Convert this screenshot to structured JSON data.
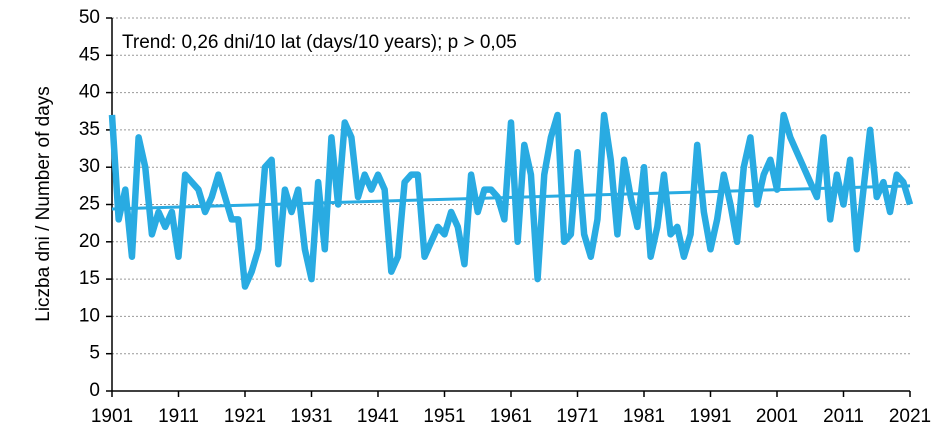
{
  "chart_data": {
    "type": "line",
    "annotation": "Trend: 0,26 dni/10 lat (days/10 years); p > 0,05",
    "y_label": "Liczba dni / Number of days",
    "x": [
      1901,
      1902,
      1903,
      1904,
      1905,
      1906,
      1907,
      1908,
      1909,
      1910,
      1911,
      1912,
      1913,
      1914,
      1915,
      1916,
      1917,
      1918,
      1919,
      1920,
      1921,
      1922,
      1923,
      1924,
      1925,
      1926,
      1927,
      1928,
      1929,
      1930,
      1931,
      1932,
      1933,
      1934,
      1935,
      1936,
      1937,
      1938,
      1939,
      1940,
      1941,
      1942,
      1943,
      1944,
      1945,
      1946,
      1947,
      1948,
      1949,
      1950,
      1951,
      1952,
      1953,
      1954,
      1955,
      1956,
      1957,
      1958,
      1959,
      1960,
      1961,
      1962,
      1963,
      1964,
      1965,
      1966,
      1967,
      1968,
      1969,
      1970,
      1971,
      1972,
      1973,
      1974,
      1975,
      1976,
      1977,
      1978,
      1979,
      1980,
      1981,
      1982,
      1983,
      1984,
      1985,
      1986,
      1987,
      1988,
      1989,
      1990,
      1991,
      1992,
      1993,
      1994,
      1995,
      1996,
      1997,
      1998,
      1999,
      2000,
      2001,
      2002,
      2003,
      2004,
      2005,
      2006,
      2007,
      2008,
      2009,
      2010,
      2011,
      2012,
      2013,
      2014,
      2015,
      2016,
      2017,
      2018,
      2019,
      2020,
      2021
    ],
    "series": [
      {
        "color": "#29abe2",
        "values": [
          37,
          23,
          27,
          18,
          34,
          30,
          21,
          24,
          22,
          24,
          18,
          29,
          28,
          27,
          24,
          26,
          29,
          26,
          23,
          23,
          14,
          16,
          19,
          30,
          31,
          17,
          27,
          24,
          27,
          19,
          15,
          28,
          19,
          34,
          25,
          36,
          34,
          26,
          29,
          27,
          29,
          27,
          16,
          18,
          28,
          29,
          29,
          18,
          20,
          22,
          21,
          24,
          22,
          17,
          29,
          24,
          27,
          27,
          26,
          23,
          36,
          20,
          33,
          29,
          15,
          29,
          34,
          37,
          20,
          21,
          32,
          21,
          18,
          23,
          37,
          31,
          21,
          31,
          26,
          22,
          30,
          18,
          22,
          29,
          21,
          22,
          18,
          21,
          33,
          24,
          19,
          23,
          29,
          25,
          20,
          30,
          34,
          25,
          29,
          31,
          27,
          37,
          34,
          32,
          30,
          28,
          26,
          34,
          23,
          29,
          25,
          31,
          19,
          27,
          35,
          26,
          28,
          24,
          29,
          28,
          25
        ]
      }
    ],
    "trend": {
      "x": [
        1901,
        2021
      ],
      "values": [
        24.4,
        27.5
      ],
      "color": "#29abe2"
    },
    "xlim": [
      1901,
      2021
    ],
    "xticks": [
      1901,
      1911,
      1921,
      1931,
      1941,
      1951,
      1961,
      1971,
      1981,
      1991,
      2001,
      2011,
      2021
    ],
    "ylim": [
      0,
      50
    ],
    "yticks": [
      0,
      5,
      10,
      15,
      20,
      25,
      30,
      35,
      40,
      45,
      50
    ],
    "grid": true
  }
}
